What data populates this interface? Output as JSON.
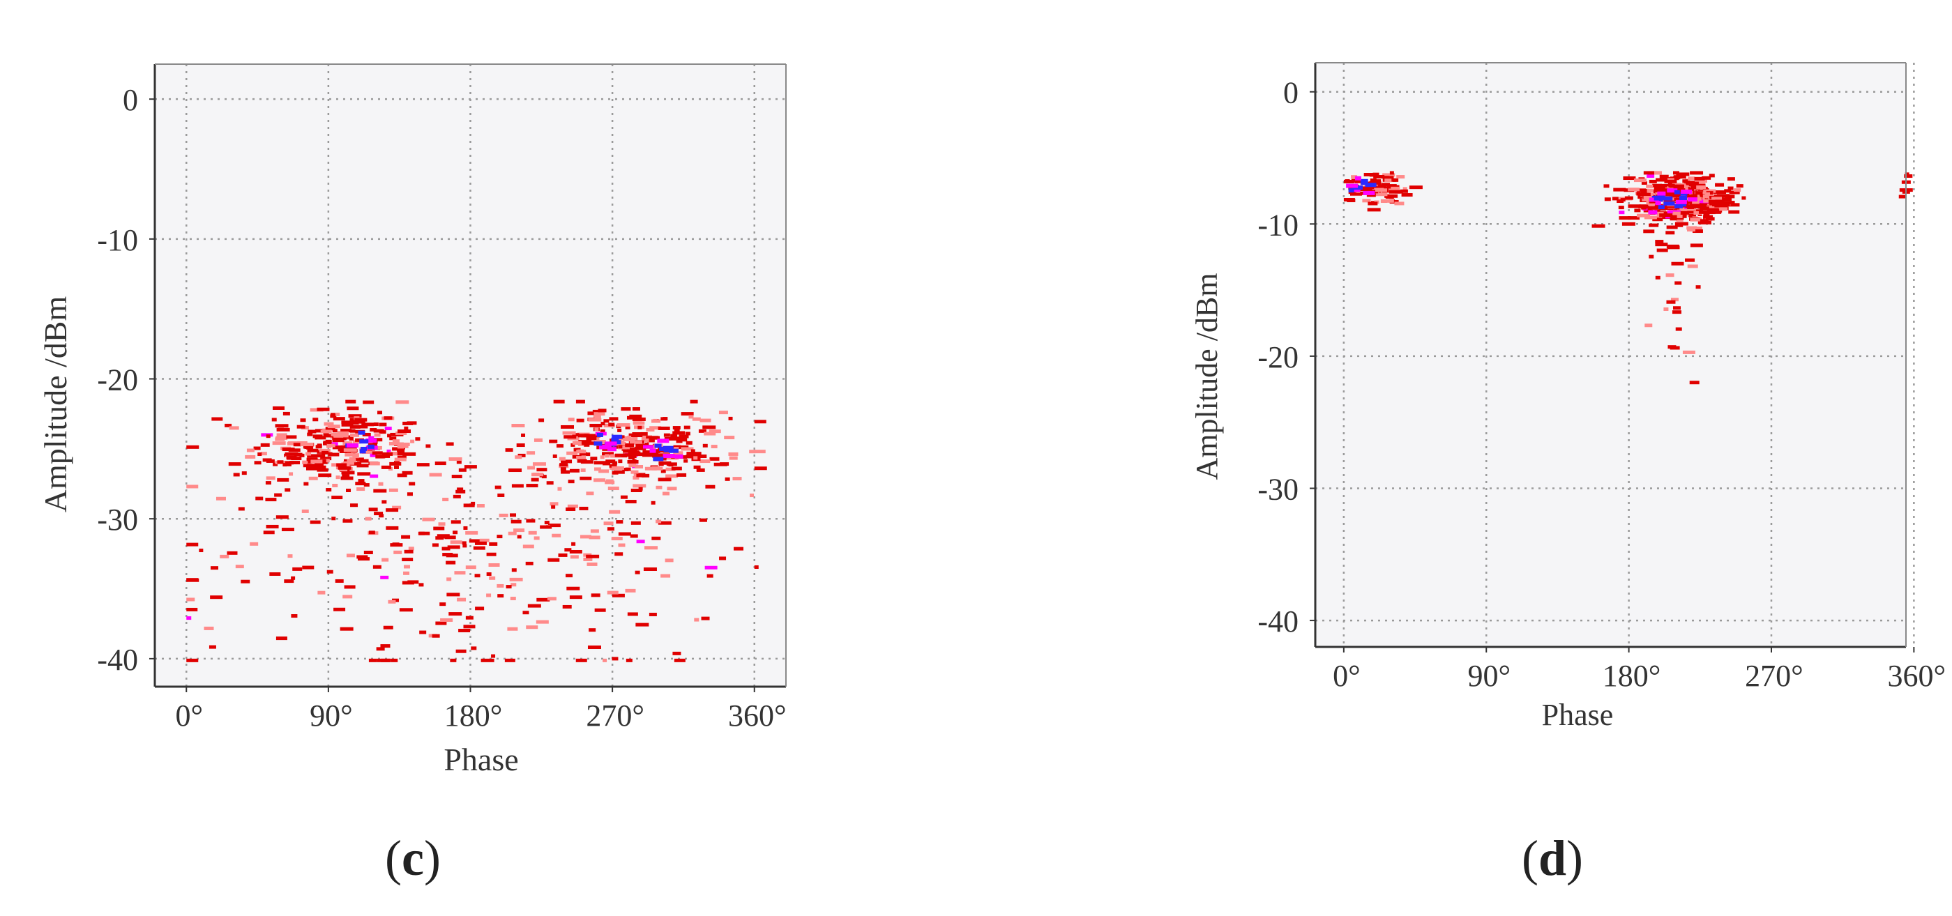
{
  "colors": {
    "plot_bg": "#f5f5f7",
    "grid": "#9a9a9a",
    "axis": "#333333",
    "low_density": "#ff8a8a",
    "mid_density": "#e00000",
    "high_density": "#ff00ff",
    "peak_density": "#2a2aff"
  },
  "chart_data": [
    {
      "panel_label": "c",
      "caption": {
        "open": "(",
        "letter": "c",
        "close": ")"
      },
      "type": "scatter",
      "subtype": "phase-resolved partial discharge pattern",
      "xlabel": "Phase",
      "ylabel": "Amplitude /dBm",
      "x_ticks": [
        0,
        90,
        180,
        270,
        360
      ],
      "x_tick_labels": [
        "0°",
        "90°",
        "180°",
        "270°",
        "360°"
      ],
      "y_ticks": [
        0,
        -10,
        -20,
        -30,
        -40
      ],
      "y_tick_labels": [
        "0",
        "-10",
        "-20",
        "-30",
        "-40"
      ],
      "xlim": [
        -20,
        380
      ],
      "ylim": [
        -42,
        2.5
      ],
      "grid": true,
      "clusters": [
        {
          "x_center": 95,
          "x_spread": 55,
          "y_center": -24.8,
          "y_spread": 1.4,
          "count": 260
        },
        {
          "x_center": 278,
          "x_spread": 60,
          "y_center": -24.8,
          "y_spread": 1.4,
          "count": 280
        },
        {
          "x_center": 180,
          "x_spread": 180,
          "y_center": -32,
          "y_spread": 4.5,
          "count": 300
        }
      ],
      "hotspots": [
        {
          "x": 110,
          "y": -24.5
        },
        {
          "x": 265,
          "y": -24.2
        },
        {
          "x": 300,
          "y": -25
        }
      ],
      "envelope": {
        "x_range": [
          0,
          360
        ],
        "y_range": [
          -40,
          -21.5
        ]
      }
    },
    {
      "panel_label": "d",
      "caption": {
        "open": "(",
        "letter": "d",
        "close": ")"
      },
      "type": "scatter",
      "subtype": "phase-resolved partial discharge pattern",
      "xlabel": "Phase",
      "ylabel": "Amplitude /dBm",
      "x_ticks": [
        0,
        90,
        180,
        270,
        360
      ],
      "x_tick_labels": [
        "0°",
        "90°",
        "180°",
        "270°",
        "360°"
      ],
      "y_ticks": [
        0,
        -10,
        -20,
        -30,
        -40
      ],
      "y_tick_labels": [
        "0",
        "-10",
        "-20",
        "-30",
        "-40"
      ],
      "xlim": [
        -18,
        355
      ],
      "ylim": [
        -42,
        2.2
      ],
      "grid": true,
      "clusters": [
        {
          "x_center": 18,
          "x_spread": 20,
          "y_center": -7.2,
          "y_spread": 0.7,
          "count": 90
        },
        {
          "x_center": 210,
          "x_spread": 32,
          "y_center": -8,
          "y_spread": 0.9,
          "count": 380
        },
        {
          "x_center": 205,
          "x_spread": 22,
          "y_center": -14,
          "y_spread": 4,
          "count": 35
        },
        {
          "x_center": 352,
          "x_spread": 3,
          "y_center": -7,
          "y_spread": 0.6,
          "count": 6
        }
      ],
      "hotspots": [
        {
          "x": 197,
          "y": -8.3
        },
        {
          "x": 212,
          "y": -8.0
        },
        {
          "x": 8,
          "y": -7.2
        }
      ],
      "envelope": {
        "x_range": [
          0,
          360
        ],
        "y_range": [
          -24.5,
          -6
        ]
      }
    }
  ]
}
